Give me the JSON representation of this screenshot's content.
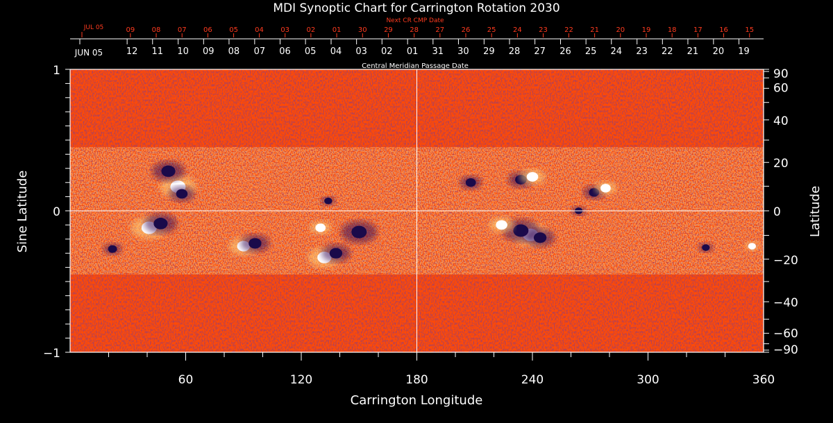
{
  "chart_data": {
    "type": "heatmap",
    "title": "MDI Synoptic Chart for Carrington Rotation 2030",
    "xlabel": "Carrington Longitude",
    "ylabel": "Sine Latitude",
    "ylabel_right": "Latitude",
    "top_label": "Central Meridian Passage Date",
    "next_label": "Next CR CMP Date",
    "xlim": [
      0,
      360
    ],
    "ylim": [
      -1,
      1
    ],
    "x_ticks": [
      60,
      120,
      180,
      240,
      300,
      360
    ],
    "y_ticks": [
      {
        "value": 1,
        "label": "1"
      },
      {
        "value": 0,
        "label": "0"
      },
      {
        "value": -1,
        "label": "−1"
      }
    ],
    "lat_ticks": [
      {
        "lat": 90,
        "label": "90"
      },
      {
        "lat": 60,
        "label": "60"
      },
      {
        "lat": 40,
        "label": "40"
      },
      {
        "lat": 20,
        "label": "20"
      },
      {
        "lat": 0,
        "label": "0"
      },
      {
        "lat": -20,
        "label": "−20"
      },
      {
        "lat": -40,
        "label": "−40"
      },
      {
        "lat": -60,
        "label": "−60"
      },
      {
        "lat": -90,
        "label": "−90"
      }
    ],
    "cmp_month_label": "JUN 05",
    "cmp_dates": [
      {
        "lon": 29.6,
        "label": "12"
      },
      {
        "lon": 42.8,
        "label": "11"
      },
      {
        "lon": 56.1,
        "label": "10"
      },
      {
        "lon": 69.3,
        "label": "09"
      },
      {
        "lon": 82.5,
        "label": "08"
      },
      {
        "lon": 95.8,
        "label": "07"
      },
      {
        "lon": 109,
        "label": "06"
      },
      {
        "lon": 122.2,
        "label": "05"
      },
      {
        "lon": 135.5,
        "label": "04"
      },
      {
        "lon": 148.7,
        "label": "03"
      },
      {
        "lon": 161.9,
        "label": "02"
      },
      {
        "lon": 175.2,
        "label": "01"
      },
      {
        "lon": 188.4,
        "label": "31"
      },
      {
        "lon": 201.6,
        "label": "30"
      },
      {
        "lon": 214.9,
        "label": "29"
      },
      {
        "lon": 228.1,
        "label": "28"
      },
      {
        "lon": 241.3,
        "label": "27"
      },
      {
        "lon": 254.6,
        "label": "26"
      },
      {
        "lon": 267.8,
        "label": "25"
      },
      {
        "lon": 281,
        "label": "24"
      },
      {
        "lon": 294.3,
        "label": "23"
      },
      {
        "lon": 307.5,
        "label": "22"
      },
      {
        "lon": 320.7,
        "label": "21"
      },
      {
        "lon": 334,
        "label": "20"
      },
      {
        "lon": 347.2,
        "label": "19"
      }
    ],
    "next_month_label": "JUL 05",
    "next_dates": [
      {
        "lon": 31.3,
        "label": "09"
      },
      {
        "lon": 44.7,
        "label": "08"
      },
      {
        "lon": 58.1,
        "label": "07"
      },
      {
        "lon": 71.5,
        "label": "06"
      },
      {
        "lon": 84.9,
        "label": "05"
      },
      {
        "lon": 98.2,
        "label": "04"
      },
      {
        "lon": 111.6,
        "label": "03"
      },
      {
        "lon": 125,
        "label": "02"
      },
      {
        "lon": 138.4,
        "label": "01"
      },
      {
        "lon": 151.8,
        "label": "30"
      },
      {
        "lon": 165.2,
        "label": "29"
      },
      {
        "lon": 178.6,
        "label": "28"
      },
      {
        "lon": 192,
        "label": "27"
      },
      {
        "lon": 205.4,
        "label": "26"
      },
      {
        "lon": 218.8,
        "label": "25"
      },
      {
        "lon": 232.2,
        "label": "24"
      },
      {
        "lon": 245.6,
        "label": "23"
      },
      {
        "lon": 258.9,
        "label": "22"
      },
      {
        "lon": 272.3,
        "label": "21"
      },
      {
        "lon": 285.7,
        "label": "20"
      },
      {
        "lon": 299.1,
        "label": "19"
      },
      {
        "lon": 312.5,
        "label": "18"
      },
      {
        "lon": 325.9,
        "label": "17"
      },
      {
        "lon": 339.3,
        "label": "16"
      },
      {
        "lon": 352.7,
        "label": "15"
      }
    ],
    "active_regions": [
      {
        "lon": 56,
        "slat": 0.17,
        "polarity": "positive",
        "strength": 1.0
      },
      {
        "lon": 51,
        "slat": 0.28,
        "polarity": "negative",
        "strength": 0.9
      },
      {
        "lon": 58,
        "slat": 0.12,
        "polarity": "negative",
        "strength": 0.7
      },
      {
        "lon": 41,
        "slat": -0.12,
        "polarity": "positive",
        "strength": 1.0
      },
      {
        "lon": 47,
        "slat": -0.09,
        "polarity": "negative",
        "strength": 0.9
      },
      {
        "lon": 90,
        "slat": -0.25,
        "polarity": "positive",
        "strength": 0.8
      },
      {
        "lon": 96,
        "slat": -0.23,
        "polarity": "negative",
        "strength": 0.8
      },
      {
        "lon": 132,
        "slat": -0.33,
        "polarity": "positive",
        "strength": 0.9
      },
      {
        "lon": 138,
        "slat": -0.3,
        "polarity": "negative",
        "strength": 0.8
      },
      {
        "lon": 150,
        "slat": -0.15,
        "polarity": "negative",
        "strength": 1.0
      },
      {
        "lon": 130,
        "slat": -0.12,
        "polarity": "positive",
        "strength": 0.6
      },
      {
        "lon": 134,
        "slat": 0.07,
        "polarity": "negative",
        "strength": 0.4
      },
      {
        "lon": 208,
        "slat": 0.2,
        "polarity": "negative",
        "strength": 0.6
      },
      {
        "lon": 234,
        "slat": 0.22,
        "polarity": "negative",
        "strength": 0.7
      },
      {
        "lon": 240,
        "slat": 0.24,
        "polarity": "positive",
        "strength": 0.7
      },
      {
        "lon": 239,
        "slat": -0.17,
        "polarity": "positive",
        "strength": 1.0
      },
      {
        "lon": 234,
        "slat": -0.14,
        "polarity": "negative",
        "strength": 1.0
      },
      {
        "lon": 244,
        "slat": -0.19,
        "polarity": "negative",
        "strength": 0.8
      },
      {
        "lon": 272,
        "slat": 0.13,
        "polarity": "negative",
        "strength": 0.6
      },
      {
        "lon": 278,
        "slat": 0.16,
        "polarity": "positive",
        "strength": 0.6
      },
      {
        "lon": 264,
        "slat": 0.0,
        "polarity": "negative",
        "strength": 0.4
      },
      {
        "lon": 22,
        "slat": -0.27,
        "polarity": "negative",
        "strength": 0.5
      },
      {
        "lon": 330,
        "slat": -0.26,
        "polarity": "negative",
        "strength": 0.4
      },
      {
        "lon": 354,
        "slat": -0.25,
        "polarity": "positive",
        "strength": 0.4
      },
      {
        "lon": 224,
        "slat": -0.1,
        "polarity": "positive",
        "strength": 0.7
      }
    ],
    "colors": {
      "background": "#000000",
      "field_base": "#ff4a05",
      "positive": "#ffffff",
      "negative": "#1a0a4a",
      "axis": "#ffffff",
      "accent": "#ff3b1f"
    }
  }
}
